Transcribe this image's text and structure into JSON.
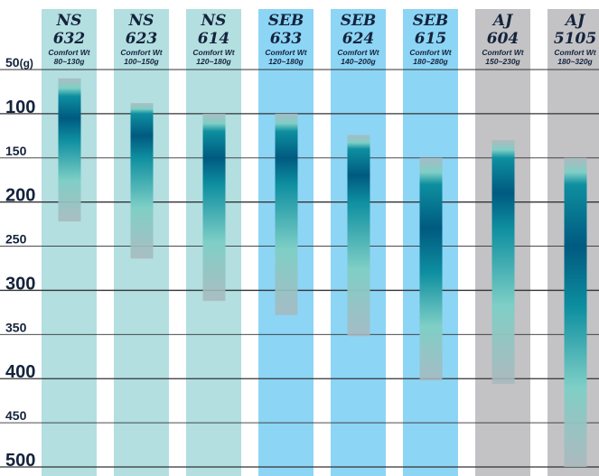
{
  "chart_data": {
    "type": "bar",
    "orientation": "vertical-range",
    "y_axis": {
      "ylim": [
        50,
        500
      ],
      "ticks": [
        {
          "value": 50,
          "label": "50",
          "unit": "(g)",
          "major": false
        },
        {
          "value": 100,
          "label": "100",
          "major": true
        },
        {
          "value": 150,
          "label": "150",
          "major": false
        },
        {
          "value": 200,
          "label": "200",
          "major": true
        },
        {
          "value": 250,
          "label": "250",
          "major": false
        },
        {
          "value": 300,
          "label": "300",
          "major": true
        },
        {
          "value": 350,
          "label": "350",
          "major": false
        },
        {
          "value": 400,
          "label": "400",
          "major": true
        },
        {
          "value": 450,
          "label": "450",
          "major": false
        },
        {
          "value": 500,
          "label": "500",
          "major": true
        }
      ]
    },
    "grid": true,
    "categories": [
      {
        "line1": "NS",
        "line2": "632",
        "comfort_label": "Comfort Wt",
        "comfort_range": "80~130g",
        "family": "NS",
        "range": [
          60,
          222
        ],
        "comfort": [
          80,
          130
        ]
      },
      {
        "line1": "NS",
        "line2": "623",
        "comfort_label": "Comfort Wt",
        "comfort_range": "100~150g",
        "family": "NS",
        "range": [
          88,
          264
        ],
        "comfort": [
          100,
          150
        ]
      },
      {
        "line1": "NS",
        "line2": "614",
        "comfort_label": "Comfort Wt",
        "comfort_range": "120~180g",
        "family": "NS",
        "range": [
          100,
          312
        ],
        "comfort": [
          120,
          180
        ]
      },
      {
        "line1": "SEB",
        "line2": "633",
        "comfort_label": "Comfort Wt",
        "comfort_range": "120~180g",
        "family": "SEB",
        "range": [
          100,
          328
        ],
        "comfort": [
          120,
          180
        ]
      },
      {
        "line1": "SEB",
        "line2": "624",
        "comfort_label": "Comfort Wt",
        "comfort_range": "140~200g",
        "family": "SEB",
        "range": [
          124,
          352
        ],
        "comfort": [
          140,
          200
        ]
      },
      {
        "line1": "SEB",
        "line2": "615",
        "comfort_label": "Comfort Wt",
        "comfort_range": "180~280g",
        "family": "SEB",
        "range": [
          150,
          402
        ],
        "comfort": [
          180,
          280
        ]
      },
      {
        "line1": "AJ",
        "line2": "604",
        "comfort_label": "Comfort Wt",
        "comfort_range": "150~230g",
        "family": "AJ",
        "range": [
          130,
          406
        ],
        "comfort": [
          150,
          230
        ]
      },
      {
        "line1": "AJ",
        "line2": "5105",
        "comfort_label": "Comfort Wt",
        "comfort_range": "180~320g",
        "family": "AJ",
        "range": [
          150,
          500
        ],
        "comfort": [
          180,
          320
        ]
      }
    ],
    "colors": {
      "NS": "#b3dfe1",
      "SEB": "#8dd5f5",
      "AJ": "#c3c3c5",
      "band_dark": "#005a80",
      "band_mid": "#0e8fa0",
      "band_light": "#7fcfc6",
      "band_end": "#a8b8bd",
      "text": "#14233c",
      "grid": "#333333"
    }
  }
}
